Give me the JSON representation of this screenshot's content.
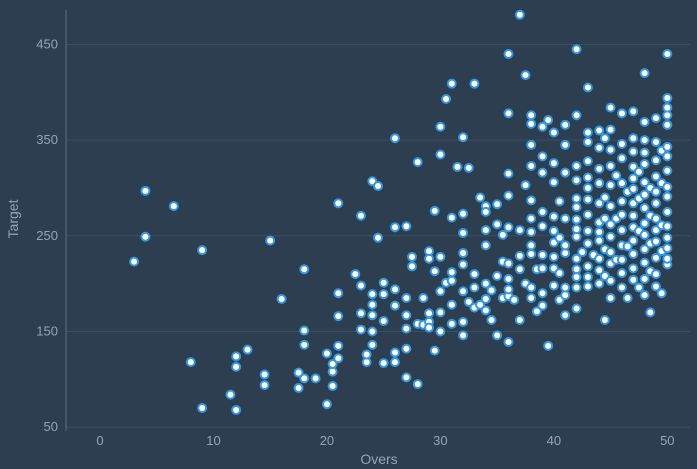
{
  "colors": {
    "background": "#2c3e50",
    "grid": "#3b4f64",
    "marker_fill": "#ffffff",
    "marker_edge": "#3498db",
    "text": "#95a5b8"
  },
  "chart_data": {
    "type": "scatter",
    "title": "",
    "xlabel": "Overs",
    "ylabel": "Target",
    "xlim": [
      -3,
      52
    ],
    "ylim": [
      46,
      486
    ],
    "xticks": [
      0,
      10,
      20,
      30,
      40,
      50
    ],
    "yticks": [
      50,
      150,
      250,
      350,
      450
    ],
    "grid": "y",
    "series": [
      {
        "points": [
          [
            3,
            223
          ],
          [
            4,
            297
          ],
          [
            4,
            249
          ],
          [
            6.5,
            281
          ],
          [
            8,
            118
          ],
          [
            9,
            235
          ],
          [
            9,
            70
          ],
          [
            11.5,
            84
          ],
          [
            12,
            68
          ],
          [
            12,
            113
          ],
          [
            12,
            124
          ],
          [
            13,
            131
          ],
          [
            14.5,
            94
          ],
          [
            14.5,
            105
          ],
          [
            15,
            245
          ],
          [
            16,
            184
          ],
          [
            17.5,
            91
          ],
          [
            17.5,
            107
          ],
          [
            18,
            136
          ],
          [
            18,
            101
          ],
          [
            18,
            151
          ],
          [
            18,
            215
          ],
          [
            19,
            101
          ],
          [
            20,
            127
          ],
          [
            20,
            74
          ],
          [
            20.5,
            93
          ],
          [
            20.5,
            108
          ],
          [
            20.5,
            116
          ],
          [
            21,
            122
          ],
          [
            21,
            135
          ],
          [
            21,
            166
          ],
          [
            21,
            190
          ],
          [
            21,
            284
          ],
          [
            22.5,
            210
          ],
          [
            23,
            169
          ],
          [
            23,
            152
          ],
          [
            23,
            198
          ],
          [
            23,
            271
          ],
          [
            23.5,
            118
          ],
          [
            23.5,
            126
          ],
          [
            24,
            178
          ],
          [
            24,
            136
          ],
          [
            24,
            150
          ],
          [
            24,
            167
          ],
          [
            24,
            189
          ],
          [
            24,
            307
          ],
          [
            24.5,
            302
          ],
          [
            24.5,
            248
          ],
          [
            25,
            189
          ],
          [
            25,
            161
          ],
          [
            25,
            201
          ],
          [
            25,
            117
          ],
          [
            26,
            194
          ],
          [
            26,
            177
          ],
          [
            26,
            118
          ],
          [
            26,
            128
          ],
          [
            26,
            259
          ],
          [
            26,
            352
          ],
          [
            27,
            102
          ],
          [
            27,
            132
          ],
          [
            27,
            153
          ],
          [
            27,
            167
          ],
          [
            27,
            185
          ],
          [
            27,
            260
          ],
          [
            27.5,
            218
          ],
          [
            27.5,
            228
          ],
          [
            28,
            95
          ],
          [
            28,
            158
          ],
          [
            28,
            327
          ],
          [
            28.5,
            157
          ],
          [
            28.5,
            185
          ],
          [
            29,
            169
          ],
          [
            29,
            160
          ],
          [
            29,
            154
          ],
          [
            29,
            226
          ],
          [
            29,
            234
          ],
          [
            29.5,
            130
          ],
          [
            29.5,
            213
          ],
          [
            29.5,
            276
          ],
          [
            30,
            364
          ],
          [
            30,
            150
          ],
          [
            30,
            170
          ],
          [
            30,
            192
          ],
          [
            30,
            228
          ],
          [
            30,
            335
          ],
          [
            30.5,
            201
          ],
          [
            30.5,
            393
          ],
          [
            31,
            158
          ],
          [
            31,
            178
          ],
          [
            31,
            203
          ],
          [
            31,
            212
          ],
          [
            31,
            269
          ],
          [
            31,
            409
          ],
          [
            31.5,
            322
          ],
          [
            32,
            146
          ],
          [
            32,
            160
          ],
          [
            32,
            192
          ],
          [
            32,
            232
          ],
          [
            32,
            220
          ],
          [
            32,
            253
          ],
          [
            32,
            273
          ],
          [
            32,
            353
          ],
          [
            32.5,
            181
          ],
          [
            32.5,
            321
          ],
          [
            33,
            175
          ],
          [
            33,
            196
          ],
          [
            33,
            210
          ],
          [
            33,
            409
          ],
          [
            33.5,
            178
          ],
          [
            33.5,
            290
          ],
          [
            34,
            184
          ],
          [
            34,
            200
          ],
          [
            34,
            172
          ],
          [
            34,
            240
          ],
          [
            34,
            256
          ],
          [
            34,
            281
          ],
          [
            34,
            275
          ],
          [
            34.5,
            162
          ],
          [
            34.5,
            193
          ],
          [
            35,
            146
          ],
          [
            35,
            208
          ],
          [
            35,
            262
          ],
          [
            35,
            283
          ],
          [
            35.5,
            185
          ],
          [
            35.5,
            223
          ],
          [
            35.5,
            251
          ],
          [
            36,
            139
          ],
          [
            36,
            187
          ],
          [
            36,
            194
          ],
          [
            36,
            205
          ],
          [
            36,
            221
          ],
          [
            36,
            259
          ],
          [
            36,
            292
          ],
          [
            36,
            315
          ],
          [
            36,
            378
          ],
          [
            36,
            440
          ],
          [
            36.5,
            183
          ],
          [
            37,
            162
          ],
          [
            37,
            215
          ],
          [
            37,
            229
          ],
          [
            37,
            256
          ],
          [
            37,
            481
          ],
          [
            37.5,
            200
          ],
          [
            37.5,
            303
          ],
          [
            37.5,
            418
          ],
          [
            38,
            196
          ],
          [
            38,
            185
          ],
          [
            38,
            231
          ],
          [
            38,
            240
          ],
          [
            38,
            254
          ],
          [
            38,
            268
          ],
          [
            38,
            287
          ],
          [
            38,
            323
          ],
          [
            38,
            345
          ],
          [
            38,
            367
          ],
          [
            38,
            376
          ],
          [
            38.5,
            171
          ],
          [
            38.5,
            215
          ],
          [
            39,
            177
          ],
          [
            39,
            190
          ],
          [
            39,
            216
          ],
          [
            39,
            230
          ],
          [
            39,
            260
          ],
          [
            39,
            275
          ],
          [
            39,
            316
          ],
          [
            39,
            333
          ],
          [
            39,
            364
          ],
          [
            39.5,
            135
          ],
          [
            39.5,
            371
          ],
          [
            40,
            198
          ],
          [
            40,
            216
          ],
          [
            40,
            228
          ],
          [
            40,
            243
          ],
          [
            40,
            255
          ],
          [
            40,
            270
          ],
          [
            40,
            306
          ],
          [
            40,
            326
          ],
          [
            40,
            358
          ],
          [
            40.5,
            183
          ],
          [
            40.5,
            211
          ],
          [
            40.5,
            248
          ],
          [
            40.5,
            286
          ],
          [
            41,
            167
          ],
          [
            41,
            188
          ],
          [
            41,
            196
          ],
          [
            41,
            232
          ],
          [
            41,
            240
          ],
          [
            41,
            268
          ],
          [
            41,
            316
          ],
          [
            41,
            345
          ],
          [
            41,
            366
          ],
          [
            42,
            174
          ],
          [
            42,
            196
          ],
          [
            42,
            207
          ],
          [
            42,
            215
          ],
          [
            42,
            226
          ],
          [
            42,
            249
          ],
          [
            42,
            257
          ],
          [
            42,
            267
          ],
          [
            42,
            280
          ],
          [
            42,
            289
          ],
          [
            42,
            308
          ],
          [
            42,
            323
          ],
          [
            42,
            376
          ],
          [
            42,
            445
          ],
          [
            42.5,
            233
          ],
          [
            43,
            207
          ],
          [
            43,
            197
          ],
          [
            43,
            218
          ],
          [
            43,
            242
          ],
          [
            43,
            255
          ],
          [
            43,
            272
          ],
          [
            43,
            288
          ],
          [
            43,
            300
          ],
          [
            43,
            311
          ],
          [
            43,
            328
          ],
          [
            43,
            348
          ],
          [
            43,
            358
          ],
          [
            43,
            405
          ],
          [
            43.5,
            230
          ],
          [
            44,
            200
          ],
          [
            44,
            214
          ],
          [
            44,
            226
          ],
          [
            44,
            245
          ],
          [
            44,
            254
          ],
          [
            44,
            264
          ],
          [
            44,
            284
          ],
          [
            44,
            305
          ],
          [
            44,
            320
          ],
          [
            44,
            342
          ],
          [
            44,
            360
          ],
          [
            44.5,
            162
          ],
          [
            44.5,
            208
          ],
          [
            44.5,
            236
          ],
          [
            44.5,
            268
          ],
          [
            44.5,
            290
          ],
          [
            44.5,
            352
          ],
          [
            45,
            185
          ],
          [
            45,
            203
          ],
          [
            45,
            221
          ],
          [
            45,
            233
          ],
          [
            45,
            249
          ],
          [
            45,
            262
          ],
          [
            45,
            281
          ],
          [
            45,
            303
          ],
          [
            45,
            323
          ],
          [
            45,
            340
          ],
          [
            45,
            361
          ],
          [
            45,
            384
          ],
          [
            45.5,
            225
          ],
          [
            45.5,
            268
          ],
          [
            45.5,
            313
          ],
          [
            46,
            196
          ],
          [
            46,
            211
          ],
          [
            46,
            225
          ],
          [
            46,
            240
          ],
          [
            46,
            256
          ],
          [
            46,
            272
          ],
          [
            46,
            286
          ],
          [
            46,
            305
          ],
          [
            46,
            331
          ],
          [
            46,
            346
          ],
          [
            46,
            378
          ],
          [
            46.5,
            185
          ],
          [
            46.5,
            239
          ],
          [
            46.5,
            296
          ],
          [
            47,
            204
          ],
          [
            47,
            216
          ],
          [
            47,
            231
          ],
          [
            47,
            245
          ],
          [
            47,
            259
          ],
          [
            47,
            271
          ],
          [
            47,
            284
          ],
          [
            47,
            299
          ],
          [
            47,
            310
          ],
          [
            47,
            322
          ],
          [
            47,
            338
          ],
          [
            47,
            352
          ],
          [
            47,
            380
          ],
          [
            47.5,
            196
          ],
          [
            47.5,
            255
          ],
          [
            47.5,
            289
          ],
          [
            47.5,
            317
          ],
          [
            48,
            205
          ],
          [
            48,
            188
          ],
          [
            48,
            222
          ],
          [
            48,
            236
          ],
          [
            48,
            251
          ],
          [
            48,
            263
          ],
          [
            48,
            279
          ],
          [
            48,
            293
          ],
          [
            48,
            306
          ],
          [
            48,
            325
          ],
          [
            48,
            337
          ],
          [
            48,
            350
          ],
          [
            48,
            369
          ],
          [
            48,
            420
          ],
          [
            48.5,
            170
          ],
          [
            48.5,
            213
          ],
          [
            48.5,
            242
          ],
          [
            48.5,
            271
          ],
          [
            48.5,
            300
          ],
          [
            49,
            197
          ],
          [
            49,
            210
          ],
          [
            49,
            227
          ],
          [
            49,
            244
          ],
          [
            49,
            256
          ],
          [
            49,
            268
          ],
          [
            49,
            284
          ],
          [
            49,
            296
          ],
          [
            49,
            312
          ],
          [
            49,
            329
          ],
          [
            49,
            348
          ],
          [
            49,
            373
          ],
          [
            49.5,
            190
          ],
          [
            49.5,
            234
          ],
          [
            49.5,
            261
          ],
          [
            49.5,
            305
          ],
          [
            49.5,
            339
          ],
          [
            50,
            220
          ],
          [
            50,
            226
          ],
          [
            50,
            237
          ],
          [
            50,
            248
          ],
          [
            50,
            260
          ],
          [
            50,
            275
          ],
          [
            50,
            291
          ],
          [
            50,
            301
          ],
          [
            50,
            318
          ],
          [
            50,
            333
          ],
          [
            50,
            343
          ],
          [
            50,
            366
          ],
          [
            50,
            376
          ],
          [
            50,
            384
          ],
          [
            50,
            394
          ],
          [
            50,
            440
          ]
        ]
      }
    ]
  }
}
